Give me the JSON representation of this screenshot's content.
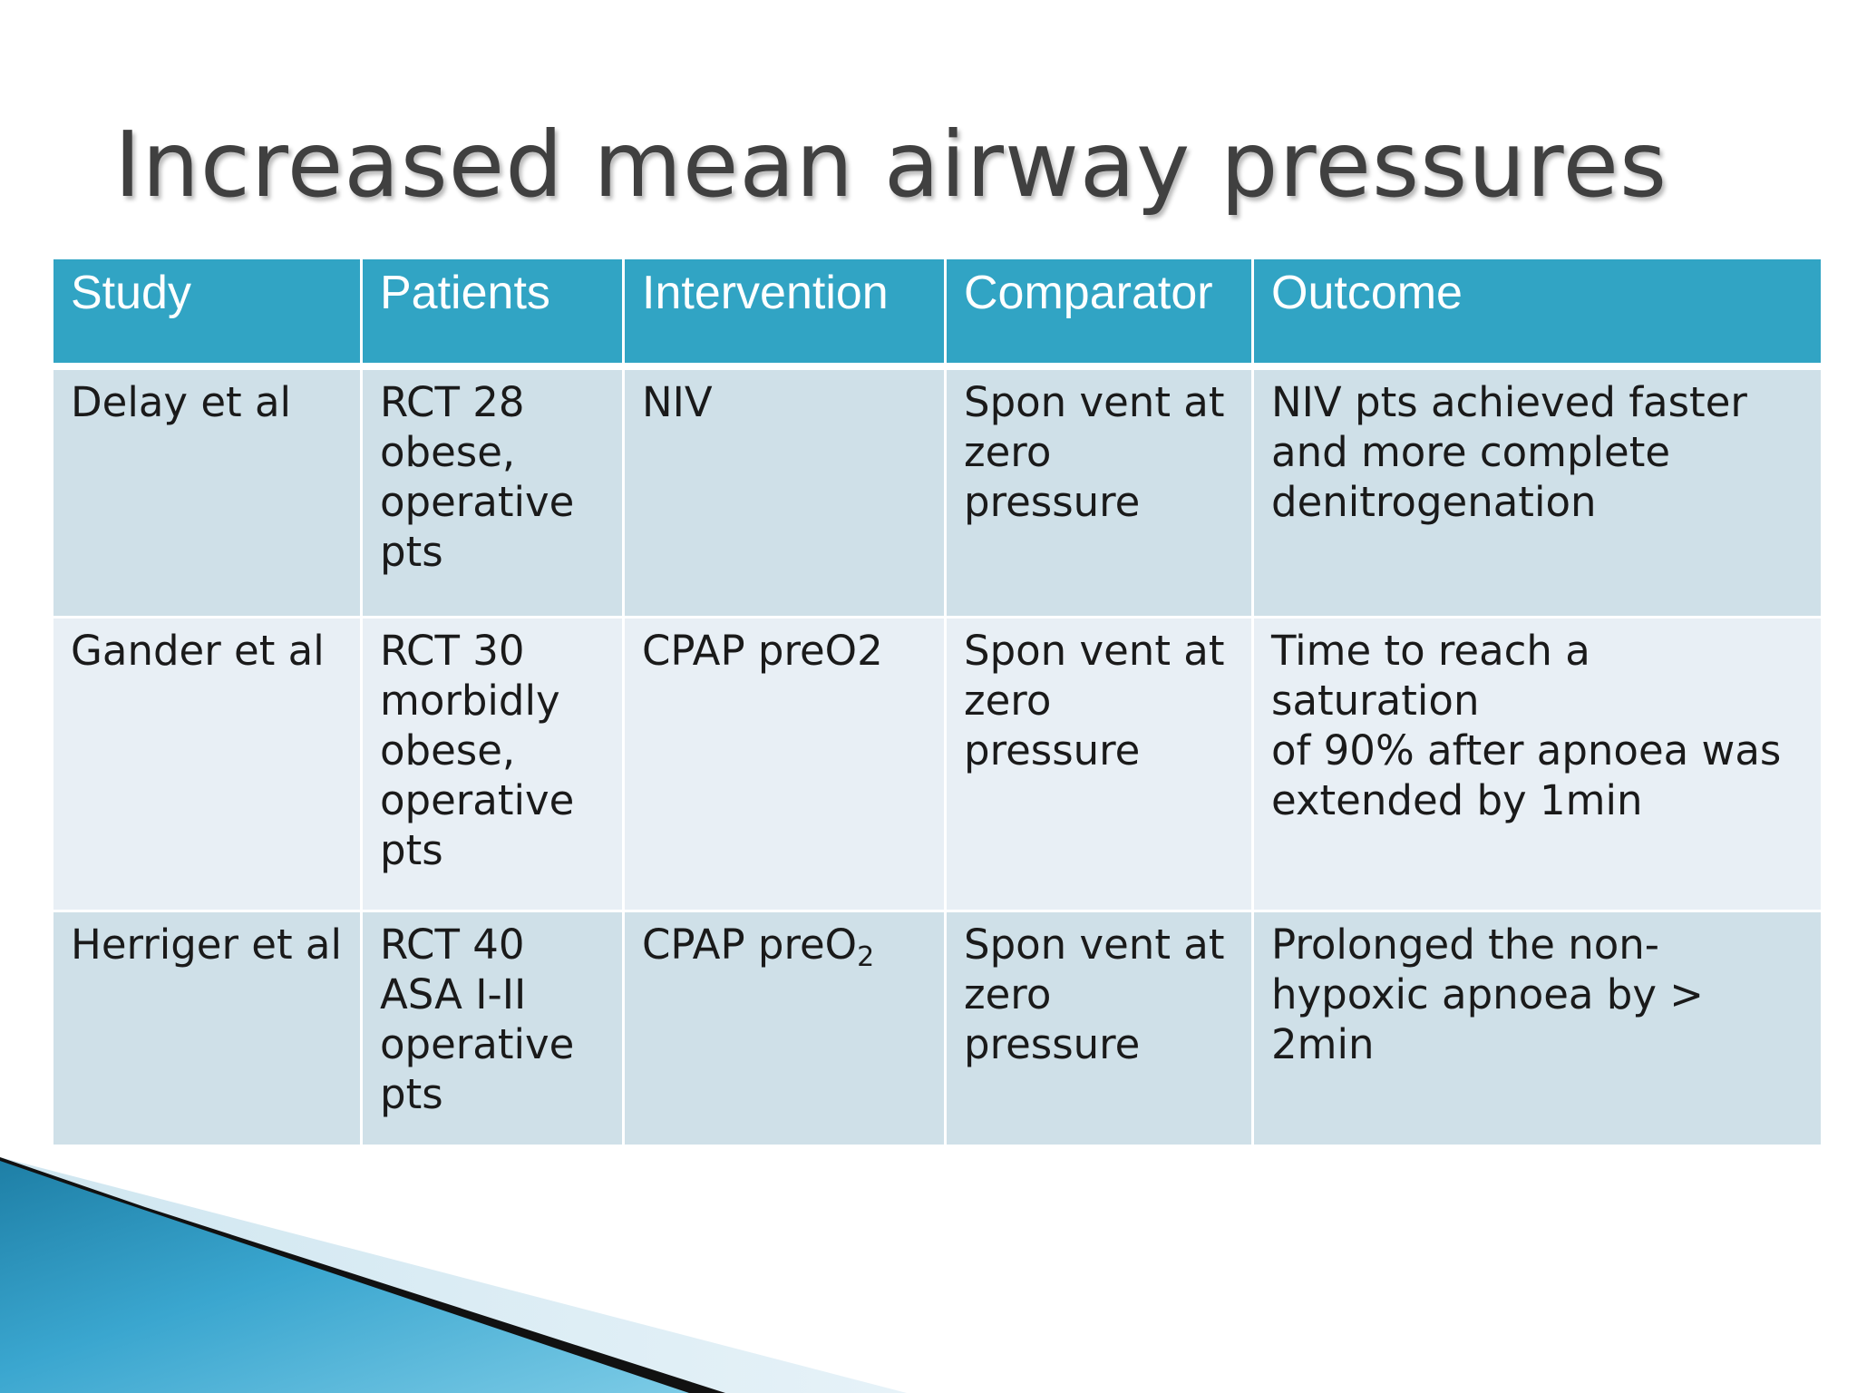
{
  "slide": {
    "title": "Increased mean airway pressures"
  },
  "table": {
    "headers": [
      "Study",
      "Patients",
      "Intervention",
      "Comparator",
      "Outcome"
    ],
    "rows": [
      {
        "study": "Delay et al",
        "patients": [
          "RCT 28",
          "obese,",
          "operative",
          "pts"
        ],
        "intervention": "NIV",
        "comparator": [
          "Spon vent at",
          "zero",
          "pressure"
        ],
        "outcome": [
          "NIV pts achieved faster",
          "and more complete",
          "denitrogenation"
        ]
      },
      {
        "study": "Gander et al",
        "patients": [
          "RCT 30",
          "morbidly",
          "obese,",
          "operative",
          "pts"
        ],
        "intervention": "CPAP preO2",
        "comparator": [
          "Spon vent at",
          "zero",
          "pressure"
        ],
        "outcome": [
          "Time to reach a saturation",
          "of 90% after apnoea was",
          "extended by 1min"
        ]
      },
      {
        "study": "Herriger et al",
        "patients": [
          "RCT 40",
          "ASA I-II",
          "operative",
          "pts"
        ],
        "intervention": {
          "base": "CPAP preO",
          "subscript": "2"
        },
        "comparator": [
          "Spon vent at",
          "zero",
          "pressure"
        ],
        "outcome": [
          "Prolonged  the non-",
          "hypoxic apnoea by >",
          "2min"
        ]
      }
    ]
  },
  "colors": {
    "header_bg": "#31a4c4",
    "row_dark": "#cfe0e8",
    "row_light": "#e8eff5",
    "title_text": "#404040"
  }
}
